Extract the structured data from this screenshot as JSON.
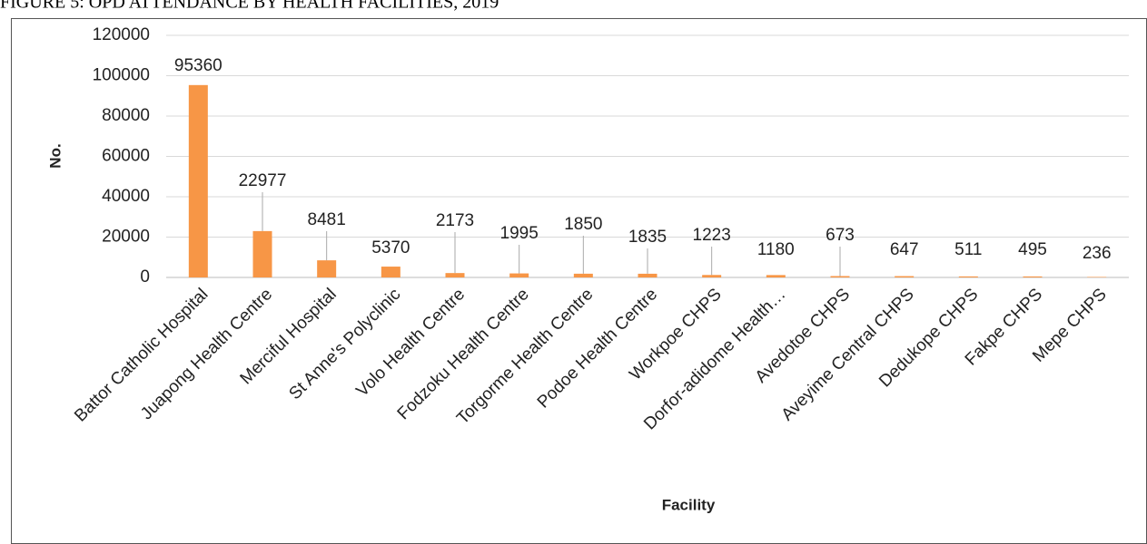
{
  "chart_data": {
    "type": "bar",
    "title": "FIGURE 5: OPD ATTENDANCE BY HEALTH FACILITIES, 2019",
    "x_label": "Facility",
    "y_label": "No.",
    "categories": [
      "Battor Catholic Hospital",
      "Juapong Health Centre",
      "Merciful Hospital",
      "St Anne's Polyclinic",
      "Volo Health Centre",
      "Fodzoku Health Centre",
      "Torgorme Health Centre",
      "Podoe Health Centre",
      "Workpoe CHPS",
      "Dorfor-adidome Health…",
      "Avedotoe CHPS",
      "Aveyime Central CHPS",
      "Dedukope CHPS",
      "Fakpe CHPS",
      "Mepe CHPS"
    ],
    "values": [
      95360,
      22977,
      8481,
      5370,
      2173,
      1995,
      1850,
      1835,
      1223,
      1180,
      673,
      647,
      511,
      495,
      236
    ],
    "color": "#f79646",
    "ylim": [
      0,
      120000
    ],
    "yticks": [
      0,
      20000,
      40000,
      60000,
      80000,
      100000,
      120000
    ],
    "grid": true
  }
}
